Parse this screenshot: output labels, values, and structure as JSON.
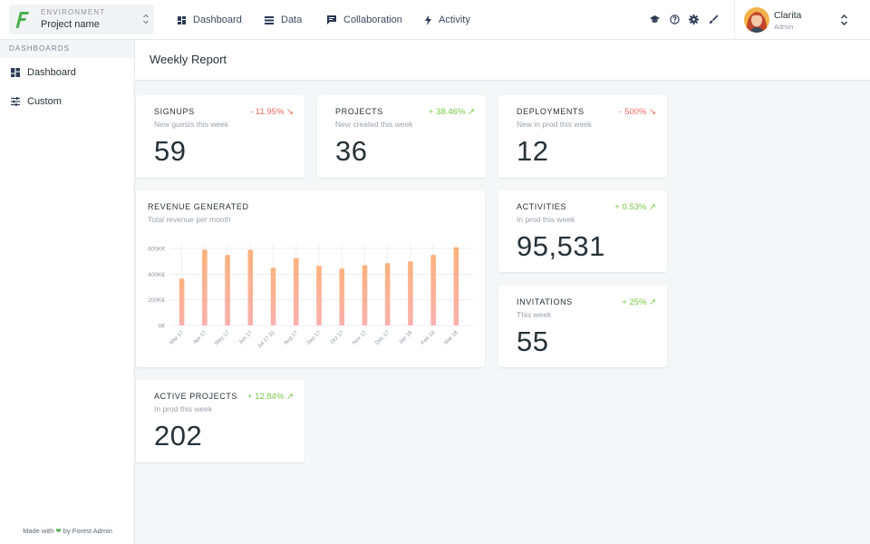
{
  "environment": {
    "label": "ENVIRONMENT",
    "value": "Project name"
  },
  "nav": [
    {
      "label": "Dashboard",
      "icon": "dashboard-icon"
    },
    {
      "label": "Data",
      "icon": "list-icon"
    },
    {
      "label": "Collaboration",
      "icon": "chat-icon"
    },
    {
      "label": "Activity",
      "icon": "bolt-icon"
    }
  ],
  "user": {
    "name": "Clarita",
    "role": "Admin"
  },
  "sidebar": {
    "header": "DASHBOARDS",
    "items": [
      {
        "label": "Dashboard",
        "icon": "dashboard-icon"
      },
      {
        "label": "Custom",
        "icon": "sliders-icon"
      }
    ],
    "footer_prefix": "Made with",
    "footer_suffix": "by Forest Admin"
  },
  "page": {
    "title": "Weekly Report"
  },
  "colors": {
    "up": "#7ac943",
    "down": "#f06a5f",
    "bar_top": "#fdb27d",
    "bar_bottom": "#fbb1ae",
    "brand": "#4caf50"
  },
  "cards": {
    "signups": {
      "title": "SIGNUPS",
      "subtitle": "New guests this week",
      "value": "59",
      "trend": "- 11.95% ↘",
      "direction": "down"
    },
    "projects": {
      "title": "PROJECTS",
      "subtitle": "New created this week",
      "value": "36",
      "trend": "+ 38.46% ↗",
      "direction": "up"
    },
    "deployments": {
      "title": "DEPLOYMENTS",
      "subtitle": "New in prod this week",
      "value": "12",
      "trend": "- 500% ↘",
      "direction": "down"
    },
    "activities": {
      "title": "ACTIVITIES",
      "subtitle": "In prod this week",
      "value": "95,531",
      "trend": "+ 0.53% ↗",
      "direction": "up"
    },
    "invitations": {
      "title": "INVITATIONS",
      "subtitle": "This week",
      "value": "55",
      "trend": "+ 25% ↗",
      "direction": "up"
    },
    "active_projects": {
      "title": "ACTIVE PROJECTS",
      "subtitle": "In prod this week",
      "value": "202",
      "trend": "+ 12.84% ↗",
      "direction": "up"
    }
  },
  "revenue": {
    "title": "REVENUE GENERATED",
    "subtitle": "Total revenue per month"
  },
  "chart_data": {
    "type": "bar",
    "categories": [
      "Mar 17",
      "Apr 17",
      "May 17",
      "Jun 17",
      "Jul 17 31",
      "Aug 17",
      "Sep 17",
      "Oct 17",
      "Nov 17",
      "Dec 17",
      "Jan 18",
      "Feb 18",
      "Mar 18"
    ],
    "values": [
      365000,
      590000,
      550000,
      590000,
      450000,
      525000,
      465000,
      445000,
      470000,
      485000,
      500000,
      550000,
      610000
    ],
    "y_ticks": [
      "0€",
      "200K€",
      "400K€",
      "600K€"
    ],
    "ylim": [
      0,
      600000
    ],
    "title": "REVENUE GENERATED",
    "subtitle": "Total revenue per month",
    "grid": true,
    "legend": "none"
  }
}
